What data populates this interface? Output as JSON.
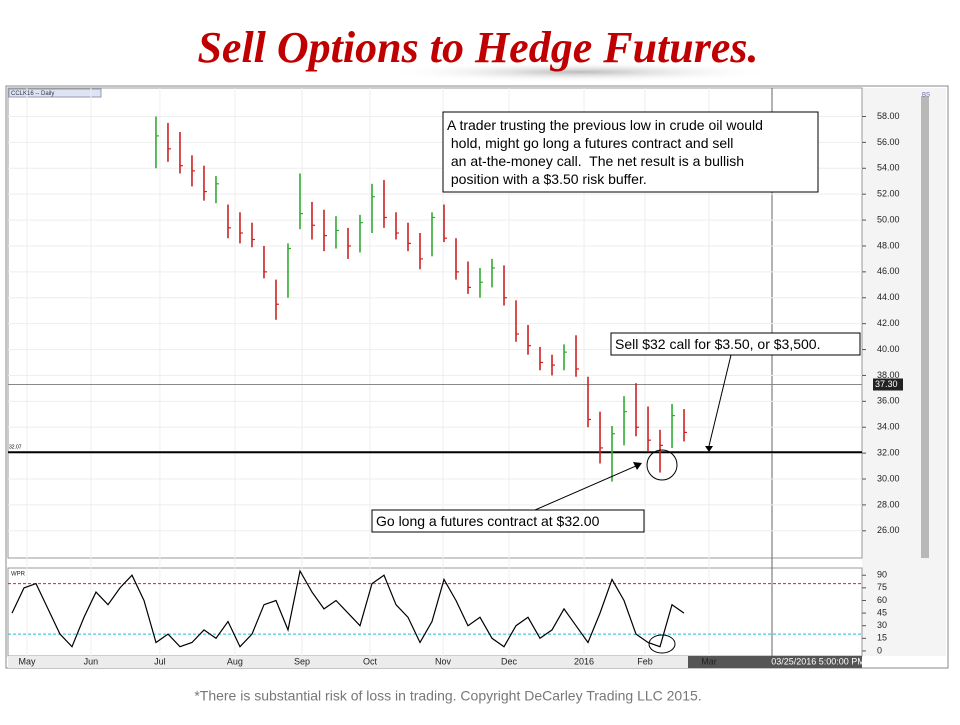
{
  "chart_data": {
    "type": "ohlc",
    "title": "Sell Options to Hedge Futures.",
    "symbol": "CCLK16 -- Daily",
    "timestamp": "03/25/2016 5:00:00 PM",
    "badge": "BS",
    "x": [
      0,
      1,
      2,
      3,
      4,
      5,
      6,
      7,
      8,
      9,
      10,
      11,
      12,
      13,
      14,
      15,
      16,
      17,
      18,
      19,
      20,
      21,
      22,
      23,
      24,
      25,
      26,
      27,
      28,
      29,
      30,
      31,
      32,
      33,
      34,
      35,
      36,
      37,
      38,
      39,
      40,
      41,
      42,
      43,
      44,
      45,
      46,
      47,
      48,
      49,
      50,
      51,
      52,
      53,
      54,
      55,
      56
    ],
    "xlim": [
      -0.33,
      70.83
    ],
    "xticks": [
      {
        "value": 1.25,
        "label": "May"
      },
      {
        "value": 6.58,
        "label": "Jun"
      },
      {
        "value": 12.33,
        "label": "Jul"
      },
      {
        "value": 18.58,
        "label": "Aug"
      },
      {
        "value": 24.17,
        "label": "Sep"
      },
      {
        "value": 29.83,
        "label": "Oct"
      },
      {
        "value": 35.92,
        "label": "Nov"
      },
      {
        "value": 41.42,
        "label": "Dec"
      },
      {
        "value": 47.67,
        "label": "2016"
      },
      {
        "value": 52.75,
        "label": "Feb"
      },
      {
        "value": 58.08,
        "label": "Mar"
      }
    ],
    "price": {
      "high": [
        null,
        null,
        null,
        null,
        null,
        null,
        null,
        null,
        null,
        null,
        null,
        null,
        58.0,
        57.5,
        56.8,
        55.0,
        54.2,
        53.4,
        51.2,
        50.6,
        49.8,
        48.0,
        45.4,
        48.2,
        53.6,
        51.4,
        50.8,
        50.3,
        49.4,
        50.4,
        52.8,
        53.1,
        50.6,
        49.8,
        49.0,
        50.6,
        51.2,
        48.6,
        46.8,
        46.3,
        47.0,
        46.5,
        43.8,
        41.9,
        40.2,
        39.6,
        40.4,
        41.1,
        37.9,
        35.2,
        34.1,
        36.4,
        37.4,
        35.6,
        33.8,
        35.8,
        35.4
      ],
      "low": [
        null,
        null,
        null,
        null,
        null,
        null,
        null,
        null,
        null,
        null,
        null,
        null,
        54.0,
        54.5,
        53.6,
        52.6,
        51.5,
        51.3,
        48.6,
        48.2,
        47.9,
        45.5,
        42.3,
        44.0,
        49.3,
        48.5,
        47.6,
        47.8,
        47.0,
        47.5,
        49.0,
        49.4,
        48.5,
        47.6,
        46.2,
        47.2,
        48.3,
        45.4,
        44.3,
        44.0,
        44.8,
        43.4,
        40.6,
        39.6,
        38.4,
        38.0,
        38.4,
        37.9,
        34.0,
        31.2,
        29.8,
        32.6,
        33.3,
        32.1,
        30.5,
        32.4,
        32.9
      ],
      "close": [
        null,
        null,
        null,
        null,
        null,
        null,
        null,
        null,
        null,
        null,
        null,
        null,
        56.5,
        55.5,
        54.2,
        53.8,
        52.2,
        52.8,
        49.4,
        49.0,
        48.5,
        46.0,
        43.5,
        47.8,
        50.5,
        49.6,
        48.8,
        49.2,
        48.0,
        49.8,
        51.8,
        50.2,
        49.0,
        48.2,
        47.0,
        50.2,
        48.6,
        46.0,
        44.8,
        45.2,
        46.3,
        44.0,
        41.2,
        40.3,
        39.0,
        38.8,
        39.8,
        38.5,
        34.6,
        32.4,
        33.5,
        35.2,
        34.0,
        33.0,
        32.6,
        34.9,
        33.6
      ],
      "up_color": "#33aa33",
      "down_color": "#cc2222",
      "ylim": [
        23.9,
        60.2
      ],
      "yticks": [
        {
          "value": 26,
          "label": "26.00"
        },
        {
          "value": 28,
          "label": "28.00"
        },
        {
          "value": 30,
          "label": "30.00"
        },
        {
          "value": 32,
          "label": "32.00"
        },
        {
          "value": 34,
          "label": "34.00"
        },
        {
          "value": 36,
          "label": "36.00"
        },
        {
          "value": 38,
          "label": "38.00"
        },
        {
          "value": 40,
          "label": "40.00"
        },
        {
          "value": 42,
          "label": "42.00"
        },
        {
          "value": 44,
          "label": "44.00"
        },
        {
          "value": 46,
          "label": "46.00"
        },
        {
          "value": 48,
          "label": "48.00"
        },
        {
          "value": 50,
          "label": "50.00"
        },
        {
          "value": 52,
          "label": "52.00"
        },
        {
          "value": 54,
          "label": "54.00"
        },
        {
          "value": 56,
          "label": "56.00"
        },
        {
          "value": 58,
          "label": "58.00"
        }
      ],
      "last_price": {
        "value": 37.3,
        "label": "37.30"
      },
      "hedge_line": {
        "value": 32.07,
        "label": "32.07"
      }
    },
    "wpr": {
      "name": "WPR",
      "values": [
        45,
        75,
        80,
        50,
        20,
        5,
        40,
        70,
        55,
        75,
        90,
        60,
        10,
        20,
        5,
        10,
        25,
        15,
        35,
        5,
        20,
        55,
        60,
        25,
        95,
        70,
        50,
        60,
        45,
        30,
        80,
        90,
        55,
        40,
        10,
        35,
        85,
        60,
        30,
        40,
        15,
        5,
        30,
        40,
        15,
        25,
        50,
        30,
        10,
        45,
        85,
        60,
        20,
        10,
        5,
        55,
        45
      ],
      "ylim": [
        -6,
        98.6
      ],
      "yticks": [
        90,
        75,
        60,
        45,
        30,
        15,
        0
      ],
      "levels": [
        {
          "value": 80,
          "color": "#dd2222"
        },
        {
          "value": 20,
          "color": "#22bbcc"
        }
      ]
    },
    "annotations": [
      {
        "lines": [
          "A trader trusting the previous low in crude oil would",
          " hold, might go long a futures contract and sell",
          " an at-the-money call.  The net result is a bullish",
          " position with a $3.50 risk buffer."
        ]
      },
      {
        "lines": [
          "Sell $32 call for $3.50, or $3,500."
        ]
      },
      {
        "lines": [
          "Go long a futures contract at $32.00"
        ]
      }
    ]
  },
  "footer": "*There is substantial risk of loss in trading. Copyright DeCarley Trading LLC 2015."
}
